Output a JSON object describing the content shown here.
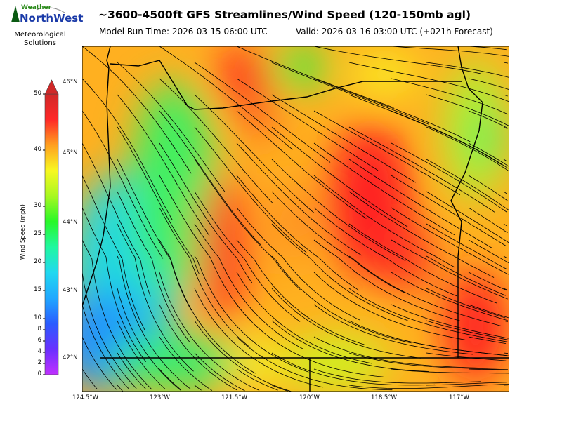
{
  "header": {
    "title": "~3600-4500ft GFS Streamlines/Wind Speed (120-150mb agl)",
    "model_run": "Model Run Time: 2026-03-15 06:00 UTC",
    "valid": "Valid: 2026-03-16 03:00 UTC  (+021h Forecast)"
  },
  "logo": {
    "line1": "Weather",
    "line2": "NorthWest",
    "subtitle": "Meteorological Solutions"
  },
  "colorbar": {
    "label": "Wind Speed (mph)",
    "ticks": [
      "0",
      "2",
      "4",
      "6",
      "8",
      "10",
      "15",
      "20",
      "25",
      "30",
      "40",
      "50"
    ],
    "extend": "max",
    "colors": [
      "#c030ff",
      "#6a30ff",
      "#2a5cff",
      "#20a8ff",
      "#20d8f0",
      "#20f8a0",
      "#28f828",
      "#a8f820",
      "#f8f820",
      "#ffa020",
      "#ff2828",
      "#d02828"
    ]
  },
  "map": {
    "lat_labels": [
      "46°N",
      "45°N",
      "44°N",
      "43°N",
      "42°N"
    ],
    "lon_labels": [
      "124.5°W",
      "123°W",
      "121.5°W",
      "120°W",
      "118.5°W",
      "117°W"
    ]
  }
}
